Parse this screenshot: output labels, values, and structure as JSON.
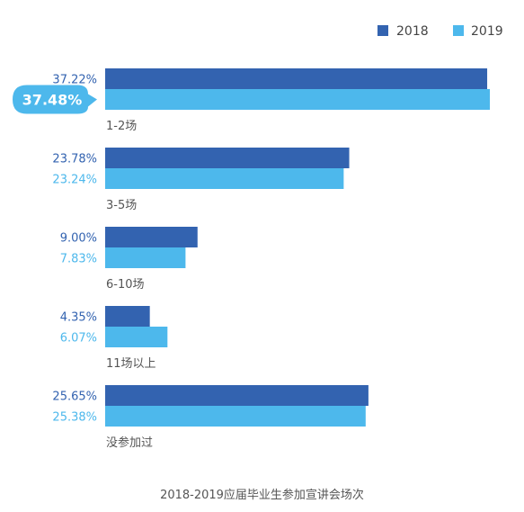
{
  "chart_data": {
    "type": "bar",
    "orientation": "horizontal",
    "title": "2018-2019应届毕业生参加宣讲会场次",
    "categories": [
      "1-2场",
      "3-5场",
      "6-10场",
      "11场以上",
      "没参加过"
    ],
    "series": [
      {
        "name": "2018",
        "color": "#3363b0",
        "values": [
          37.22,
          23.78,
          9.0,
          4.35,
          25.65
        ],
        "labels": [
          "37.22%",
          "23.78%",
          "9.00%",
          "4.35%",
          "25.65%"
        ]
      },
      {
        "name": "2019",
        "color": "#4db8ec",
        "values": [
          37.48,
          23.24,
          7.83,
          6.07,
          25.38
        ],
        "labels": [
          "37.48%",
          "23.24%",
          "7.83%",
          "6.07%",
          "25.38%"
        ]
      }
    ],
    "highlight": {
      "series": 1,
      "category": 0,
      "label": "37.48%"
    },
    "xlim": [
      0,
      37.48
    ],
    "legend_position": "top-right",
    "grid": false
  }
}
